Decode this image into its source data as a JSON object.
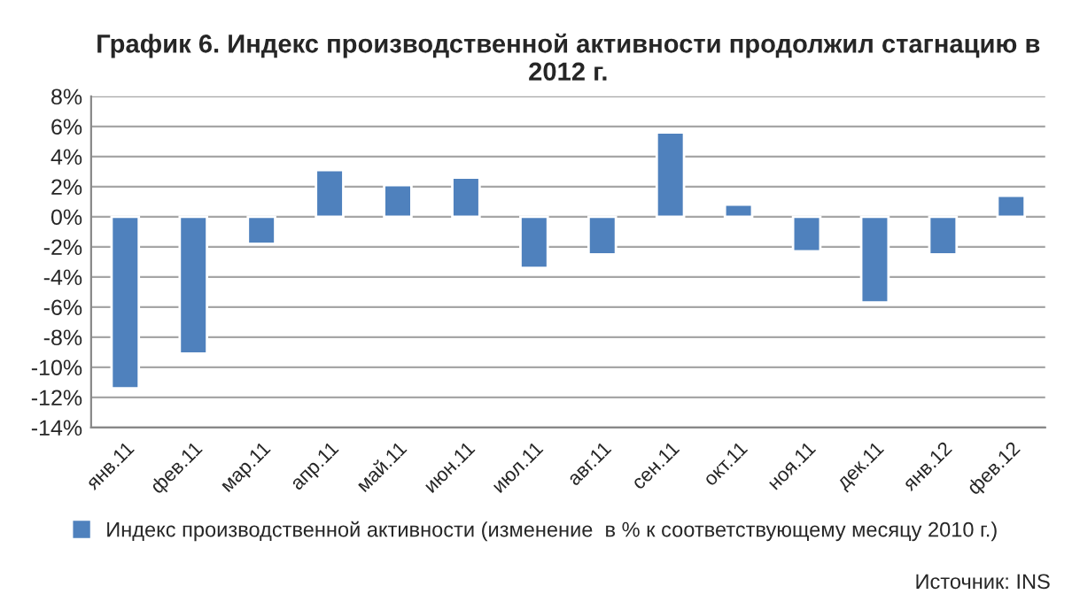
{
  "chart_data": {
    "type": "bar",
    "title": "График 6. Индекс производственной активности продолжил стагнацию в 2012 г.",
    "categories": [
      "янв.11",
      "фев.11",
      "мар.11",
      "апр.11",
      "май.11",
      "июн.11",
      "июл.11",
      "авг.11",
      "сен.11",
      "окт.11",
      "ноя.11",
      "дек.11",
      "янв.12",
      "фев.12"
    ],
    "series": [
      {
        "name": "Индекс производственной активности (изменение  в % к соответствующему месяцу 2010 г.)",
        "color": "#4f81bd",
        "values": [
          -11.4,
          -9.1,
          -1.8,
          3.1,
          2.1,
          2.6,
          -3.4,
          -2.5,
          5.6,
          0.8,
          -2.3,
          -5.7,
          -2.5,
          1.4
        ]
      }
    ],
    "ylim": [
      -14,
      8
    ],
    "yticks": [
      {
        "value": -14,
        "label": "-14%"
      },
      {
        "value": -12,
        "label": "-12%"
      },
      {
        "value": -10,
        "label": "-10%"
      },
      {
        "value": -8,
        "label": "-8%"
      },
      {
        "value": -6,
        "label": "-6%"
      },
      {
        "value": -4,
        "label": "-4%"
      },
      {
        "value": -2,
        "label": "-2%"
      },
      {
        "value": 0,
        "label": "0%"
      },
      {
        "value": 2,
        "label": "2%"
      },
      {
        "value": 4,
        "label": "4%"
      },
      {
        "value": 6,
        "label": "6%"
      },
      {
        "value": 8,
        "label": "8%"
      }
    ],
    "grid": "y",
    "legend": "bottom",
    "annotations": [
      "Источник: INS"
    ]
  }
}
